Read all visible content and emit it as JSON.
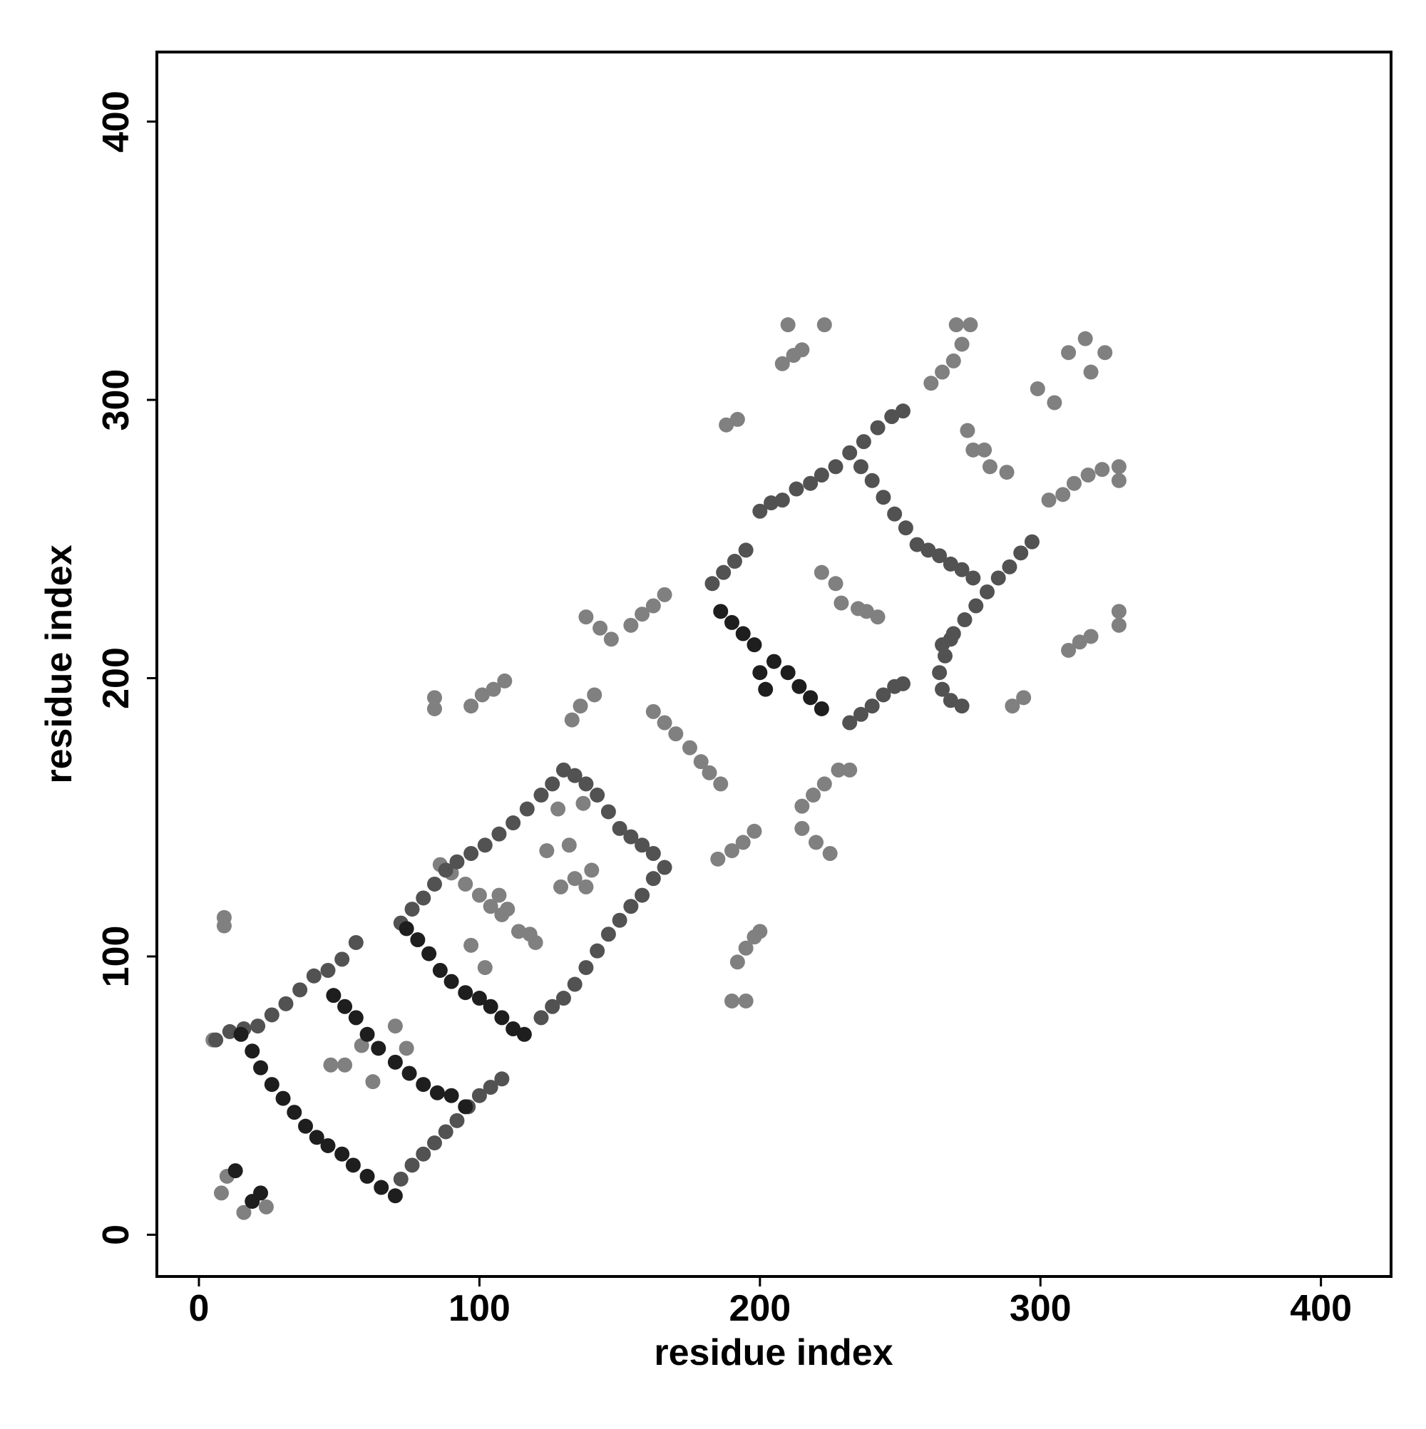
{
  "chart_data": {
    "type": "scatter",
    "xlabel": "residue index",
    "ylabel": "residue index",
    "xlim": [
      -15,
      425
    ],
    "ylim": [
      -15,
      425
    ],
    "xticks": [
      0,
      100,
      200,
      300,
      400
    ],
    "yticks": [
      0,
      100,
      200,
      300,
      400
    ],
    "series": [
      {
        "color": "#808080",
        "x": [
          47,
          52,
          62,
          58,
          70,
          74,
          8,
          10,
          16,
          24,
          5,
          9,
          9,
          86,
          90,
          95,
          100,
          104,
          108,
          107,
          110,
          114,
          118,
          120,
          97,
          102,
          129,
          134,
          138,
          140,
          132,
          124,
          128,
          137,
          222,
          227,
          229,
          235,
          238,
          242,
          84,
          84,
          97,
          101,
          105,
          109,
          133,
          136,
          141,
          138,
          143,
          147,
          154,
          158,
          162,
          166,
          162,
          166,
          170,
          175,
          179,
          182,
          186,
          185,
          190,
          194,
          198,
          192,
          195,
          198,
          200,
          190,
          195,
          215,
          220,
          225,
          215,
          219,
          223,
          228,
          232,
          188,
          192,
          208,
          212,
          215,
          210,
          223,
          261,
          265,
          269,
          272,
          270,
          275,
          274,
          276,
          280,
          282,
          288,
          290,
          294,
          299,
          305,
          310,
          316,
          323,
          318,
          303,
          308,
          312,
          317,
          322,
          328,
          328,
          310,
          314,
          318,
          328,
          328
        ],
        "y": [
          61,
          61,
          55,
          68,
          75,
          67,
          15,
          21,
          8,
          10,
          70,
          111,
          114,
          133,
          130,
          126,
          122,
          118,
          115,
          122,
          117,
          109,
          108,
          105,
          104,
          96,
          125,
          128,
          125,
          131,
          140,
          138,
          153,
          155,
          238,
          234,
          227,
          225,
          224,
          222,
          189,
          193,
          190,
          194,
          196,
          199,
          185,
          190,
          194,
          222,
          218,
          214,
          219,
          223,
          226,
          230,
          188,
          184,
          180,
          175,
          170,
          166,
          162,
          135,
          138,
          141,
          145,
          98,
          103,
          107,
          109,
          84,
          84,
          146,
          141,
          137,
          154,
          158,
          162,
          167,
          167,
          291,
          293,
          313,
          316,
          318,
          327,
          327,
          306,
          310,
          314,
          320,
          327,
          327,
          289,
          282,
          282,
          276,
          274,
          190,
          193,
          304,
          299,
          317,
          322,
          317,
          310,
          264,
          266,
          270,
          273,
          275,
          276,
          271,
          210,
          213,
          215,
          224,
          219
        ]
      },
      {
        "color": "#525252",
        "x": [
          6,
          11,
          16,
          21,
          26,
          31,
          36,
          41,
          46,
          51,
          56,
          72,
          76,
          80,
          84,
          88,
          92,
          96,
          100,
          104,
          108,
          72,
          76,
          80,
          84,
          88,
          92,
          97,
          102,
          107,
          112,
          117,
          122,
          126,
          130,
          134,
          138,
          142,
          146,
          150,
          154,
          158,
          162,
          166,
          162,
          158,
          154,
          150,
          146,
          142,
          138,
          134,
          130,
          126,
          122,
          183,
          187,
          191,
          195,
          200,
          204,
          208,
          213,
          218,
          222,
          227,
          232,
          237,
          242,
          247,
          251,
          236,
          240,
          244,
          248,
          252,
          256,
          260,
          264,
          268,
          272,
          276,
          265,
          269,
          273,
          277,
          281,
          285,
          289,
          293,
          297,
          232,
          236,
          240,
          244,
          248,
          251,
          268,
          266,
          264,
          265,
          268,
          272
        ],
        "y": [
          70,
          73,
          74,
          75,
          79,
          83,
          88,
          93,
          95,
          99,
          105,
          20,
          25,
          29,
          33,
          37,
          41,
          46,
          50,
          53,
          56,
          112,
          117,
          121,
          126,
          131,
          134,
          137,
          140,
          144,
          148,
          153,
          158,
          162,
          167,
          165,
          162,
          158,
          152,
          146,
          143,
          140,
          137,
          132,
          128,
          122,
          118,
          113,
          108,
          102,
          96,
          90,
          85,
          82,
          78,
          234,
          238,
          242,
          246,
          260,
          263,
          264,
          268,
          270,
          273,
          276,
          281,
          285,
          290,
          294,
          296,
          276,
          271,
          265,
          259,
          254,
          248,
          246,
          244,
          241,
          239,
          236,
          212,
          216,
          221,
          226,
          231,
          236,
          240,
          245,
          249,
          184,
          187,
          190,
          194,
          197,
          198,
          214,
          208,
          202,
          196,
          192,
          190
        ]
      },
      {
        "color": "#1e1e1e",
        "x": [
          15,
          19,
          22,
          26,
          30,
          34,
          38,
          42,
          46,
          51,
          55,
          60,
          65,
          70,
          48,
          52,
          56,
          60,
          64,
          70,
          75,
          80,
          85,
          90,
          95,
          74,
          78,
          82,
          86,
          90,
          95,
          100,
          104,
          108,
          112,
          116,
          186,
          190,
          194,
          198,
          205,
          210,
          214,
          218,
          222,
          202,
          200,
          13,
          19,
          22
        ],
        "y": [
          72,
          66,
          60,
          54,
          49,
          44,
          39,
          35,
          32,
          29,
          25,
          21,
          17,
          14,
          86,
          82,
          78,
          72,
          67,
          62,
          58,
          54,
          51,
          50,
          46,
          110,
          106,
          101,
          95,
          91,
          87,
          85,
          82,
          78,
          74,
          72,
          224,
          220,
          216,
          212,
          206,
          202,
          197,
          193,
          189,
          196,
          202,
          23,
          12,
          15
        ]
      }
    ]
  }
}
